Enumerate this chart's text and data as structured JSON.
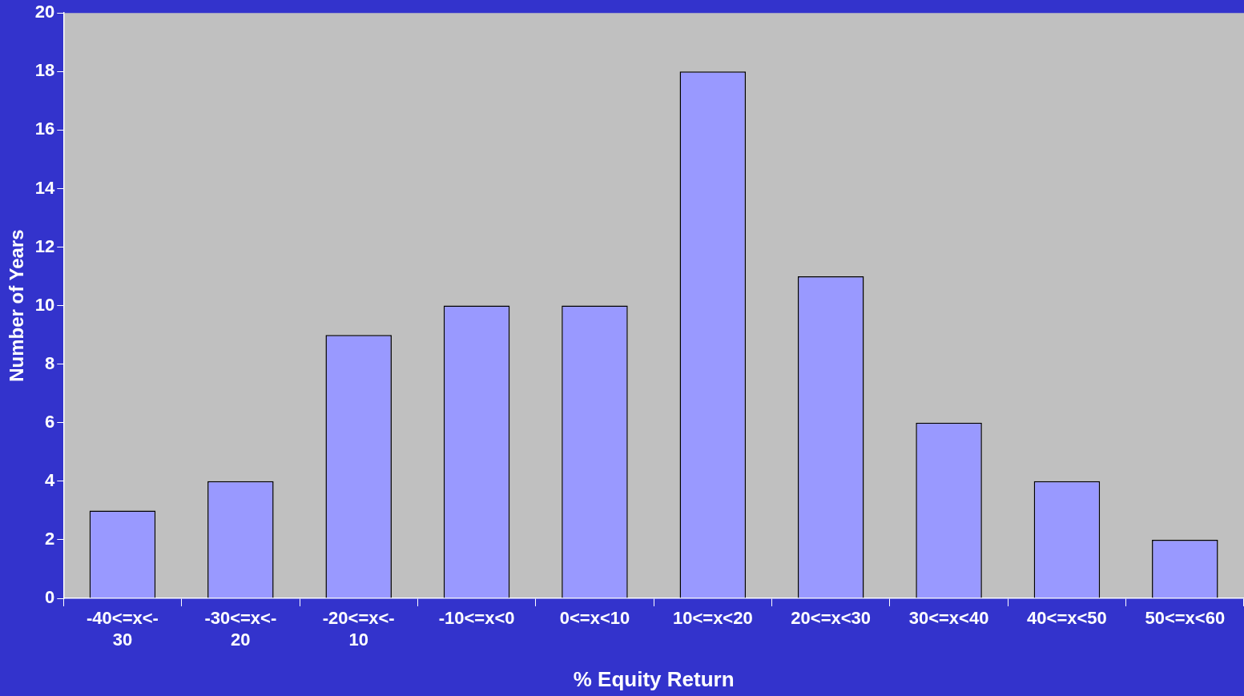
{
  "chart_data": {
    "type": "bar",
    "xlabel": "% Equity Return",
    "ylabel": "Number of Years",
    "categories": [
      "-40<=x<-30",
      "-30<=x<-20",
      "-20<=x<-10",
      "-10<=x<0",
      "0<=x<10",
      "10<=x<20",
      "20<=x<30",
      "30<=x<40",
      "40<=x<50",
      "50<=x<60"
    ],
    "values": [
      3,
      4,
      9,
      10,
      10,
      18,
      11,
      6,
      4,
      2
    ],
    "color": "#9999ff",
    "ylim": [
      0,
      20
    ],
    "yticks": [
      0,
      2,
      4,
      6,
      8,
      10,
      12,
      14,
      16,
      18,
      20
    ],
    "grid": false,
    "legend": false
  }
}
